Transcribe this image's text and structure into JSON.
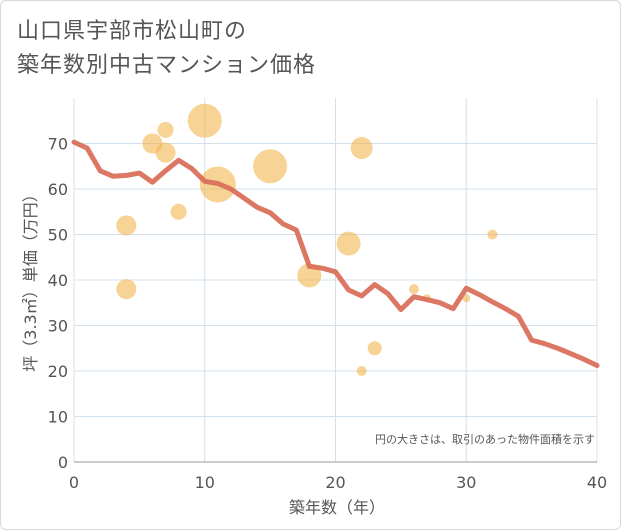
{
  "title_line1": "山口県宇部市松山町の",
  "title_line2": "築年数別中古マンション価格",
  "colors": {
    "bubble": "#f2b54e",
    "line": "#d9705a",
    "grid": "#d3e1ec",
    "plot_bg": "#ffffff",
    "text": "#555555"
  },
  "chart_data": {
    "type": "scatter",
    "title": "山口県宇部市松山町の築年数別中古マンション価格",
    "xlabel": "築年数（年）",
    "ylabel": "坪（3.3㎡）単価（万円）",
    "xlim": [
      0,
      40
    ],
    "ylim": [
      0,
      80
    ],
    "xticks": [
      0,
      10,
      20,
      30,
      40
    ],
    "yticks": [
      0,
      10,
      20,
      30,
      40,
      50,
      60,
      70
    ],
    "note": "円の大きさは、取引のあった物件面積を示す",
    "bubbles": [
      {
        "x": 4,
        "y": 52,
        "size": 10
      },
      {
        "x": 4,
        "y": 38,
        "size": 10
      },
      {
        "x": 6,
        "y": 70,
        "size": 10
      },
      {
        "x": 7,
        "y": 73,
        "size": 8
      },
      {
        "x": 7,
        "y": 68,
        "size": 10
      },
      {
        "x": 8,
        "y": 55,
        "size": 8
      },
      {
        "x": 10,
        "y": 75,
        "size": 17
      },
      {
        "x": 11,
        "y": 61,
        "size": 18
      },
      {
        "x": 15,
        "y": 65,
        "size": 17
      },
      {
        "x": 18,
        "y": 41,
        "size": 12
      },
      {
        "x": 21,
        "y": 48,
        "size": 12
      },
      {
        "x": 22,
        "y": 69,
        "size": 11
      },
      {
        "x": 22,
        "y": 20,
        "size": 5
      },
      {
        "x": 23,
        "y": 25,
        "size": 7
      },
      {
        "x": 26,
        "y": 38,
        "size": 5
      },
      {
        "x": 27,
        "y": 36,
        "size": 4
      },
      {
        "x": 30,
        "y": 36,
        "size": 4
      },
      {
        "x": 32,
        "y": 50,
        "size": 5
      }
    ],
    "line": {
      "x": [
        0,
        1,
        2,
        3,
        4,
        5,
        6,
        7,
        8,
        9,
        10,
        11,
        12,
        13,
        14,
        15,
        16,
        17,
        18,
        19,
        20,
        21,
        22,
        23,
        24,
        25,
        26,
        27,
        28,
        29,
        30,
        31,
        32,
        33,
        34,
        35,
        36,
        37,
        38,
        39,
        40
      ],
      "y": [
        70.3,
        69,
        64,
        62.8,
        63,
        63.5,
        61.5,
        64,
        66.3,
        64.5,
        61.7,
        61.2,
        60,
        58,
        56,
        54.8,
        52.3,
        51,
        43,
        42.6,
        41.8,
        37.8,
        36.5,
        39,
        37,
        33.5,
        36.3,
        35.7,
        35,
        33.7,
        38.2,
        36.8,
        35.2,
        33.7,
        32,
        26.8,
        26,
        25,
        23.8,
        22.6,
        21.2
      ]
    }
  }
}
